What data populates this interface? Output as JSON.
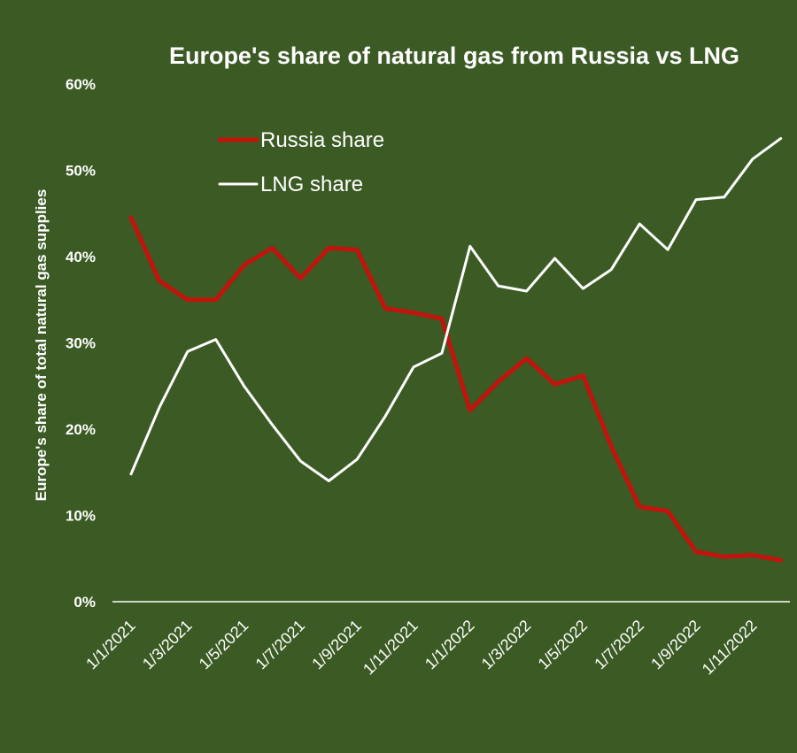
{
  "chart_data": {
    "type": "line",
    "title": "Europe's share of natural gas from Russia vs LNG",
    "ylabel": "Europe's share of total natural gas supplies",
    "xlabel": "",
    "x": [
      "1/1/2021",
      "1/2/2021",
      "1/3/2021",
      "1/4/2021",
      "1/5/2021",
      "1/6/2021",
      "1/7/2021",
      "1/8/2021",
      "1/9/2021",
      "1/10/2021",
      "1/11/2021",
      "1/12/2021",
      "1/1/2022",
      "1/2/2022",
      "1/3/2022",
      "1/4/2022",
      "1/5/2022",
      "1/6/2022",
      "1/7/2022",
      "1/8/2022",
      "1/9/2022",
      "1/10/2022",
      "1/11/2022",
      "1/12/2022"
    ],
    "xtick_labels": [
      "1/1/2021",
      "1/3/2021",
      "1/5/2021",
      "1/7/2021",
      "1/9/2021",
      "1/11/2021",
      "1/1/2022",
      "1/3/2022",
      "1/5/2022",
      "1/7/2022",
      "1/9/2022",
      "1/11/2022"
    ],
    "ytick_labels": [
      "0%",
      "10%",
      "20%",
      "30%",
      "40%",
      "50%",
      "60%"
    ],
    "ylim": [
      0,
      60
    ],
    "grid": false,
    "legend_position": "top-left",
    "series": [
      {
        "name": "Russia share",
        "color": "#c0140c",
        "values": [
          44.5,
          37.2,
          35.0,
          35.0,
          39.0,
          41.0,
          37.5,
          41.0,
          40.8,
          34.0,
          33.5,
          32.8,
          22.2,
          25.5,
          28.2,
          25.2,
          26.2,
          18.0,
          11.0,
          10.5,
          5.8,
          5.2,
          5.4,
          4.8
        ]
      },
      {
        "name": "LNG share",
        "color": "#ffffff",
        "values": [
          14.8,
          22.5,
          29.0,
          30.4,
          25.0,
          20.5,
          16.3,
          14.0,
          16.5,
          21.5,
          27.2,
          28.8,
          41.2,
          36.6,
          36.0,
          39.8,
          36.3,
          38.5,
          43.8,
          40.8,
          46.6,
          46.9,
          51.3,
          53.7
        ]
      }
    ]
  }
}
